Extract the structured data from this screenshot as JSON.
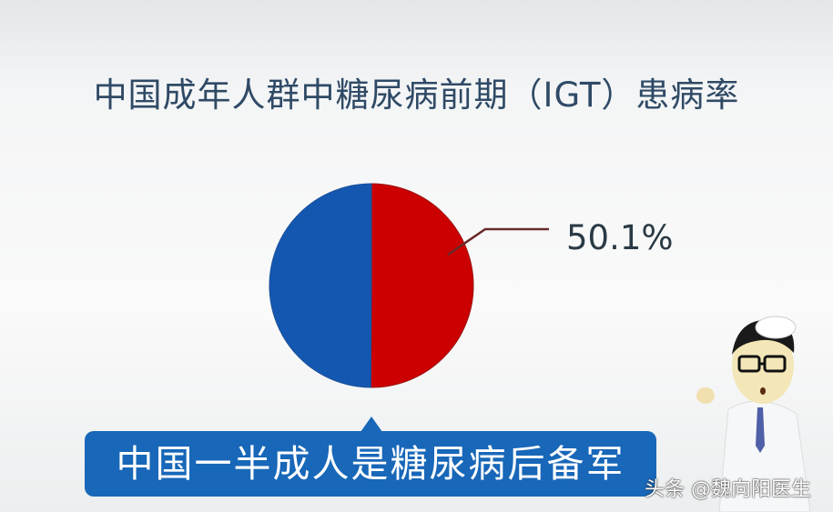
{
  "chart_data": {
    "type": "pie",
    "title": "中国成年人群中糖尿病前期（IGT）患病率",
    "slices": [
      {
        "value": 49.9,
        "color": "#1457b0",
        "label": ""
      },
      {
        "value": 50.1,
        "color": "#cc0000",
        "label": "50.1%"
      }
    ]
  },
  "callout": {
    "text": "中国一半成人是糖尿病后备军",
    "color": "#1867b8"
  },
  "watermark": "头条 @魏向阳医生",
  "illustration": "doctor-cartoon"
}
